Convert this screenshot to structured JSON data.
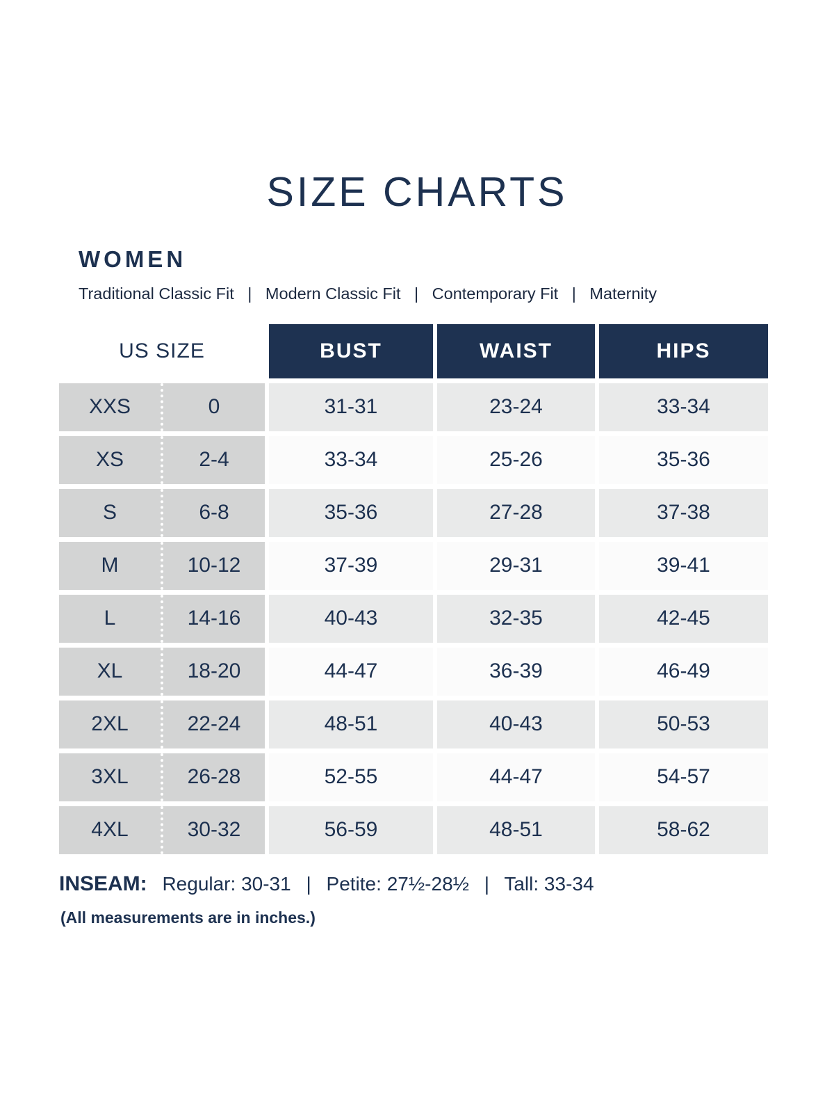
{
  "page": {
    "title": "SIZE CHARTS",
    "section_heading": "WOMEN",
    "fits": [
      "Traditional Classic Fit",
      "Modern Classic Fit",
      "Contemporary Fit",
      "Maternity"
    ],
    "fit_separator": "|"
  },
  "table": {
    "us_size_header": "US SIZE",
    "measurement_headers": [
      "BUST",
      "WAIST",
      "HIPS"
    ],
    "rows": [
      {
        "size": "XXS",
        "us": "0",
        "bust": "31-31",
        "waist": "23-24",
        "hips": "33-34"
      },
      {
        "size": "XS",
        "us": "2-4",
        "bust": "33-34",
        "waist": "25-26",
        "hips": "35-36"
      },
      {
        "size": "S",
        "us": "6-8",
        "bust": "35-36",
        "waist": "27-28",
        "hips": "37-38"
      },
      {
        "size": "M",
        "us": "10-12",
        "bust": "37-39",
        "waist": "29-31",
        "hips": "39-41"
      },
      {
        "size": "L",
        "us": "14-16",
        "bust": "40-43",
        "waist": "32-35",
        "hips": "42-45"
      },
      {
        "size": "XL",
        "us": "18-20",
        "bust": "44-47",
        "waist": "36-39",
        "hips": "46-49"
      },
      {
        "size": "2XL",
        "us": "22-24",
        "bust": "48-51",
        "waist": "40-43",
        "hips": "50-53"
      },
      {
        "size": "3XL",
        "us": "26-28",
        "bust": "52-55",
        "waist": "44-47",
        "hips": "54-57"
      },
      {
        "size": "4XL",
        "us": "30-32",
        "bust": "56-59",
        "waist": "48-51",
        "hips": "58-62"
      }
    ]
  },
  "inseam": {
    "label": "INSEAM:",
    "regular": "Regular: 30-31",
    "petite": "Petite: 27½-28½",
    "tall": "Tall: 33-34",
    "separator": "|"
  },
  "note": "(All measurements are in inches.)",
  "colors": {
    "navy_header_bg": "#1e3251",
    "navy_text": "#1d3150",
    "header_text": "#ffffff",
    "size_column_bg": "#d3d4d4",
    "row_odd_bg": "#e9eaea",
    "row_even_bg": "#fbfbfb"
  }
}
